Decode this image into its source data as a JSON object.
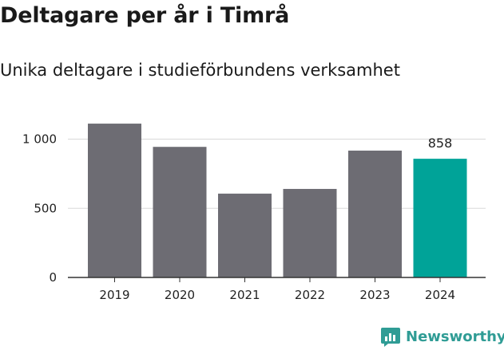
{
  "title": "Deltagare per år i Timrå",
  "subtitle": "Unika deltagare i studieförbundens verksamhet",
  "brand": {
    "name": "Newsworthy",
    "icon": "newsworthy-logo-icon"
  },
  "colors": {
    "bar": "#6d6c73",
    "highlight": "#00a398",
    "brand": "#2f9c95"
  },
  "chart_data": {
    "type": "bar",
    "categories": [
      "2019",
      "2020",
      "2021",
      "2022",
      "2023",
      "2024"
    ],
    "values": [
      1112,
      944,
      606,
      640,
      917,
      858
    ],
    "highlight_index": 5,
    "data_labels": [
      {
        "index": 5,
        "text": "858"
      }
    ],
    "y_ticks": [
      {
        "value": 0,
        "label": "0"
      },
      {
        "value": 500,
        "label": "500"
      },
      {
        "value": 1000,
        "label": "1 000"
      }
    ],
    "ylim": [
      0,
      1150
    ],
    "grid": true,
    "legend": "none"
  }
}
